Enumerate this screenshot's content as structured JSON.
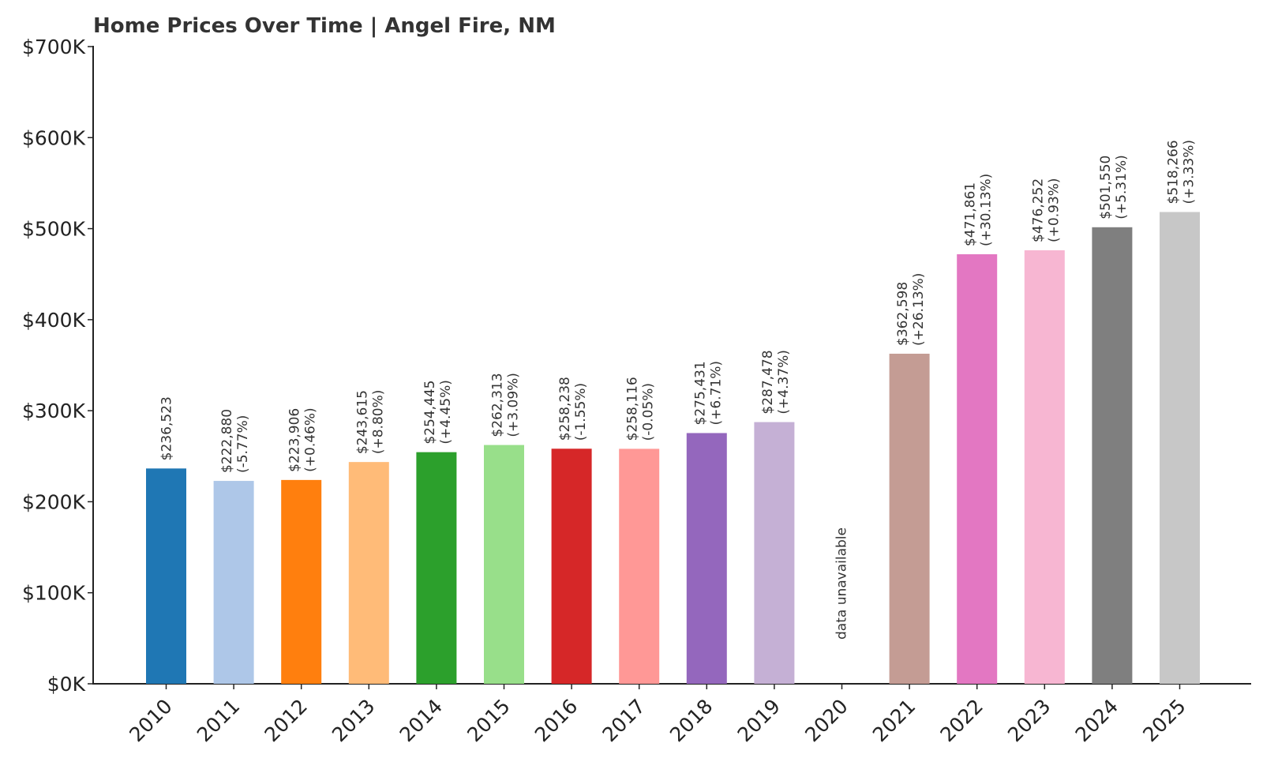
{
  "chart_data": {
    "type": "bar",
    "title": "Home Prices Over Time | Angel Fire, NM",
    "xlabel": "",
    "ylabel": "",
    "ylim": [
      0,
      700000
    ],
    "yticks": [
      0,
      100000,
      200000,
      300000,
      400000,
      500000,
      600000,
      700000
    ],
    "ytick_labels": [
      "$0K",
      "$100K",
      "$200K",
      "$300K",
      "$400K",
      "$500K",
      "$600K",
      "$700K"
    ],
    "grid": false,
    "categories": [
      "2010",
      "2011",
      "2012",
      "2013",
      "2014",
      "2015",
      "2016",
      "2017",
      "2018",
      "2019",
      "2020",
      "2021",
      "2022",
      "2023",
      "2024",
      "2025"
    ],
    "values": [
      236523,
      222880,
      223906,
      243615,
      254445,
      262313,
      258238,
      258116,
      275431,
      287478,
      null,
      362598,
      471861,
      476252,
      501550,
      518266
    ],
    "value_labels": [
      "$236,523",
      "$222,880",
      "$223,906",
      "$243,615",
      "$254,445",
      "$262,313",
      "$258,238",
      "$258,116",
      "$275,431",
      "$287,478",
      "",
      "$362,598",
      "$471,861",
      "$476,252",
      "$501,550",
      "$518,266"
    ],
    "change_labels": [
      "",
      "(-5.77%)",
      "(+0.46%)",
      "(+8.80%)",
      "(+4.45%)",
      "(+3.09%)",
      "(-1.55%)",
      "(-0.05%)",
      "(+6.71%)",
      "(+4.37%)",
      "",
      "(+26.13%)",
      "(+30.13%)",
      "(+0.93%)",
      "(+5.31%)",
      "(+3.33%)"
    ],
    "colors": [
      "#1f77b4",
      "#aec7e8",
      "#ff7f0e",
      "#ffbb78",
      "#2ca02c",
      "#98df8a",
      "#d62728",
      "#ff9896",
      "#9467bd",
      "#c5b0d5",
      "#ffffff",
      "#c49c94",
      "#e377c2",
      "#f7b6d2",
      "#7f7f7f",
      "#c7c7c7"
    ],
    "missing_label": "data unavailable"
  }
}
